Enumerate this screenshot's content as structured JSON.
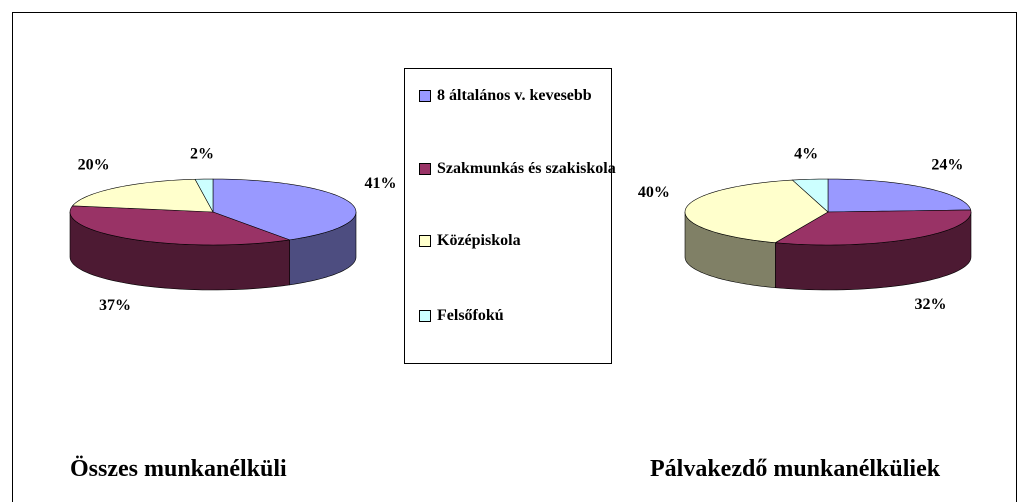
{
  "chart_data": [
    {
      "type": "pie",
      "title": "Összes munkanélküli",
      "categories": [
        "8 általános v. kevesebb",
        "Szakmunkás és szakiskola",
        "Középiskola",
        "Felsőfokú"
      ],
      "values": [
        41,
        37,
        20,
        2
      ],
      "value_labels": [
        "41%",
        "37%",
        "20%",
        "2%"
      ],
      "colors": [
        "#9999ff",
        "#993366",
        "#ffffcc",
        "#ccffff"
      ]
    },
    {
      "type": "pie",
      "title": "Pálvakezdő munkanélküliek",
      "categories": [
        "8 általános v. kevesebb",
        "Szakmunkás és szakiskola",
        "Középiskola",
        "Felsőfokú"
      ],
      "values": [
        24,
        32,
        40,
        4
      ],
      "value_labels": [
        "24%",
        "32%",
        "40%",
        "4%"
      ],
      "colors": [
        "#9999ff",
        "#993366",
        "#ffffcc",
        "#ccffff"
      ]
    }
  ]
}
